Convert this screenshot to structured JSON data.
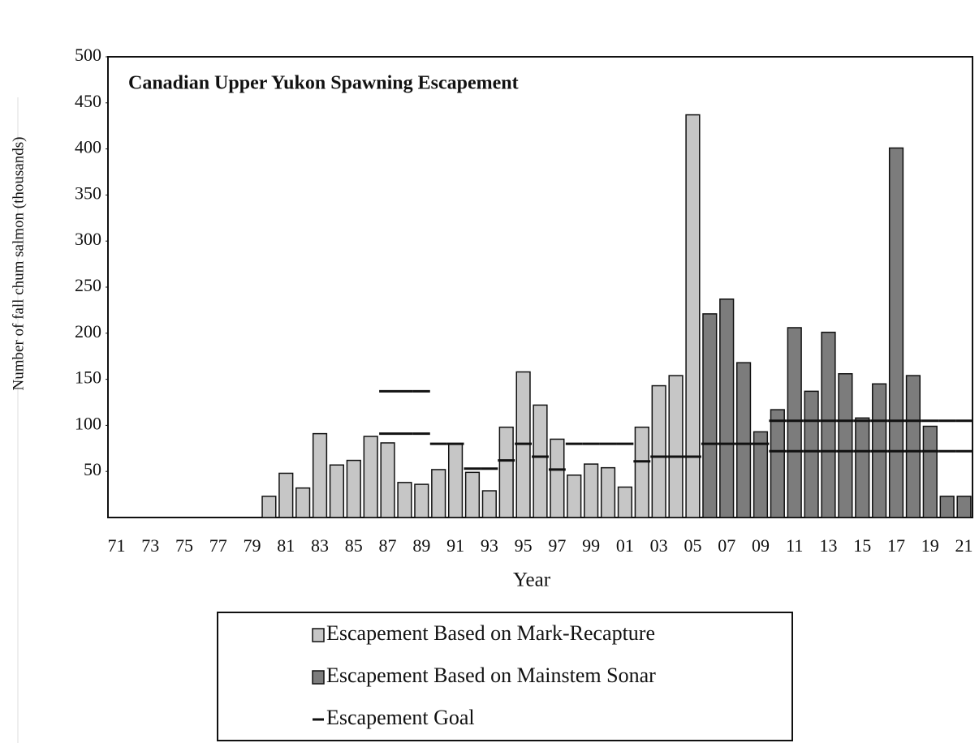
{
  "chart_data": {
    "type": "bar",
    "title": "Canadian Upper Yukon Spawning Escapement",
    "x_label": "Year",
    "y_label": "Number of fall chum salmon  (thousands)",
    "categories": [
      "71",
      null,
      "73",
      null,
      "75",
      null,
      "77",
      null,
      "79",
      null,
      "81",
      null,
      "83",
      null,
      "85",
      null,
      "87",
      null,
      "89",
      null,
      "91",
      null,
      "93",
      null,
      "95",
      null,
      "97",
      null,
      "99",
      null,
      "01",
      null,
      "03",
      null,
      "05",
      null,
      "07",
      null,
      "09",
      null,
      "11",
      null,
      "13",
      null,
      "15",
      null,
      "17",
      null,
      "19",
      null,
      "21"
    ],
    "series": [
      {
        "name": "Escapement Based on Mark-Recapture",
        "type": "bar",
        "color": "#c6c6c6",
        "values": [
          null,
          null,
          null,
          null,
          null,
          null,
          null,
          null,
          null,
          23,
          48,
          32,
          91,
          57,
          62,
          88,
          81,
          38,
          36,
          52,
          80,
          49,
          29,
          98,
          158,
          122,
          85,
          46,
          58,
          54,
          33,
          98,
          143,
          154,
          437,
          null,
          null,
          null,
          null,
          null,
          null,
          null,
          null,
          null,
          null,
          null,
          null,
          null,
          null,
          null,
          null
        ]
      },
      {
        "name": "Escapement Based on Mainstem Sonar",
        "type": "bar",
        "color": "#7c7c7c",
        "values": [
          null,
          null,
          null,
          null,
          null,
          null,
          null,
          null,
          null,
          null,
          null,
          null,
          null,
          null,
          null,
          null,
          null,
          null,
          null,
          null,
          null,
          null,
          null,
          null,
          null,
          null,
          null,
          null,
          null,
          null,
          null,
          null,
          null,
          null,
          null,
          221,
          237,
          168,
          93,
          117,
          206,
          137,
          201,
          156,
          108,
          145,
          401,
          154,
          99,
          23,
          23
        ]
      },
      {
        "name": "Escapement Goal",
        "type": "step",
        "color": "#111111",
        "values": [
          null,
          null,
          null,
          null,
          null,
          null,
          null,
          null,
          null,
          null,
          null,
          null,
          null,
          null,
          null,
          null,
          91,
          91,
          91,
          80,
          80,
          53,
          53,
          62,
          80,
          66,
          52,
          80,
          80,
          80,
          80,
          61,
          66,
          66,
          66,
          80,
          80,
          80,
          80,
          72,
          72,
          72,
          72,
          72,
          72,
          72,
          72,
          72,
          72,
          72,
          72
        ],
        "upper": [
          null,
          null,
          null,
          null,
          null,
          null,
          null,
          null,
          null,
          null,
          null,
          null,
          null,
          null,
          null,
          null,
          137,
          137,
          137,
          null,
          null,
          null,
          null,
          null,
          null,
          null,
          null,
          null,
          null,
          null,
          null,
          null,
          null,
          null,
          null,
          null,
          null,
          null,
          null,
          105,
          105,
          105,
          105,
          105,
          105,
          105,
          105,
          105,
          105,
          105,
          105
        ]
      }
    ],
    "ylim": [
      0,
      500
    ],
    "yticks": [
      50,
      100,
      150,
      200,
      250,
      300,
      350,
      400,
      450,
      500
    ],
    "grid": false
  }
}
